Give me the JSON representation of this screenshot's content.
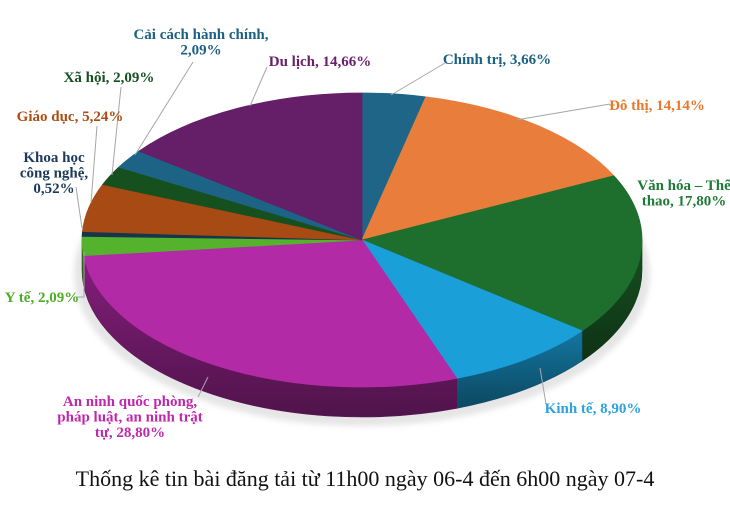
{
  "chart_data": {
    "type": "pie",
    "style": "3d",
    "title": "Thống kê tin bài đăng tải từ 11h00 ngày 06-4 đến 6h00 ngày 07-4",
    "direction": "clockwise",
    "start_angle_deg": 0,
    "legend_position": "outside-data-labels",
    "background": "#FFFFFF",
    "leader_line_color": "#A6A6A6",
    "slices": [
      {
        "label": "Chính trị",
        "value": 3.66,
        "value_display": "3,66%",
        "label_lines": [
          "Chính trị, 3,66%"
        ],
        "color": "#1E6588",
        "label_color": "#1C6083"
      },
      {
        "label": "Đô thị",
        "value": 14.14,
        "value_display": "14,14%",
        "label_lines": [
          "Đô thị, 14,14%"
        ],
        "color": "#E87D3C",
        "label_color": "#E8782C"
      },
      {
        "label": "Văn hóa – Thể thao",
        "value": 17.8,
        "value_display": "17,80%",
        "label_lines": [
          "Văn hóa – Thể",
          "thao, 17,80%"
        ],
        "color": "#1E6E2D",
        "label_color": "#1E7B36"
      },
      {
        "label": "Kinh tế",
        "value": 8.9,
        "value_display": "8,90%",
        "label_lines": [
          "Kinh tế, 8,90%"
        ],
        "color": "#1B9FD8",
        "label_color": "#2BA3DF"
      },
      {
        "label": "An ninh quốc phòng, pháp luật, an ninh trật tự",
        "value": 28.8,
        "value_display": "28,80%",
        "label_lines": [
          "An ninh quốc phòng,",
          "pháp luật, an ninh trật",
          "tự, 28,80%"
        ],
        "color": "#B22AA6",
        "label_color": "#BE29AC"
      },
      {
        "label": "Y tế",
        "value": 2.09,
        "value_display": "2,09%",
        "label_lines": [
          "Y tế, 2,09%"
        ],
        "color": "#54B22D",
        "label_color": "#4BAE27"
      },
      {
        "label": "Khoa học công nghệ",
        "value": 0.52,
        "value_display": "0,52%",
        "label_lines": [
          "Khoa học",
          "công nghệ,",
          "0,52%"
        ],
        "color": "#16364D",
        "label_color": "#1B3A58"
      },
      {
        "label": "Giáo dục",
        "value": 5.24,
        "value_display": "5,24%",
        "label_lines": [
          "Giáo dục, 5,24%"
        ],
        "color": "#A74A13",
        "label_color": "#AC4E12"
      },
      {
        "label": "Xã hội",
        "value": 2.09,
        "value_display": "2,09%",
        "label_lines": [
          "Xã hội, 2,09%"
        ],
        "color": "#16501F",
        "label_color": "#175022"
      },
      {
        "label": "Cải cách hành chính",
        "value": 2.09,
        "value_display": "2,09%",
        "label_lines": [
          "Cải cách hành chính,",
          "2,09%"
        ],
        "color": "#1C6385",
        "label_color": "#1C6083"
      },
      {
        "label": "Du lịch",
        "value": 14.66,
        "value_display": "14,66%",
        "label_lines": [
          "Du lịch, 14,66%"
        ],
        "color": "#641F68",
        "label_color": "#6A2068"
      }
    ]
  }
}
